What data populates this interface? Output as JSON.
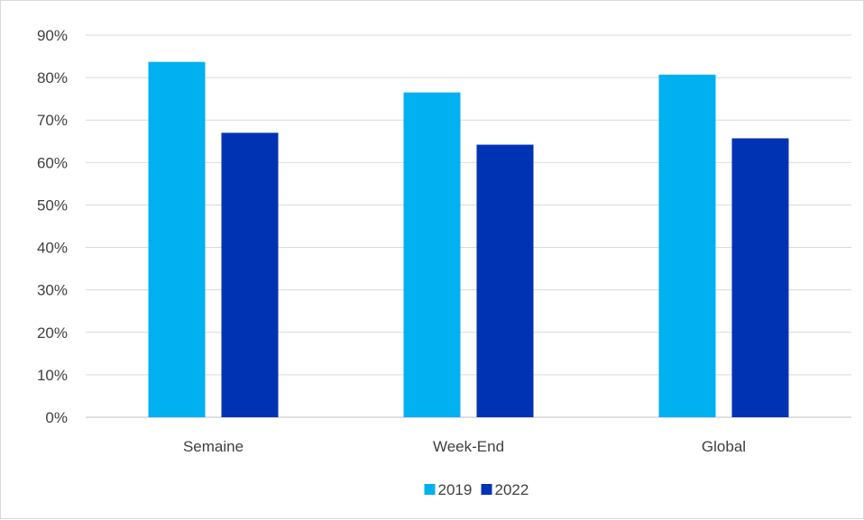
{
  "chart_data": {
    "type": "bar",
    "categories": [
      "Semaine",
      "Week-End",
      "Global"
    ],
    "series": [
      {
        "name": "2019",
        "values": [
          83.7,
          76.5,
          80.7
        ],
        "color": "#00b0f0"
      },
      {
        "name": "2022",
        "values": [
          67.0,
          64.2,
          65.7
        ],
        "color": "#0033b4"
      }
    ],
    "y_ticks": [
      "0%",
      "10%",
      "20%",
      "30%",
      "40%",
      "50%",
      "60%",
      "70%",
      "80%",
      "90%"
    ],
    "y_unit": "%",
    "ylim": [
      0,
      90
    ],
    "grid": true,
    "legend_position": "bottom",
    "title": "",
    "xlabel": "",
    "ylabel": ""
  }
}
